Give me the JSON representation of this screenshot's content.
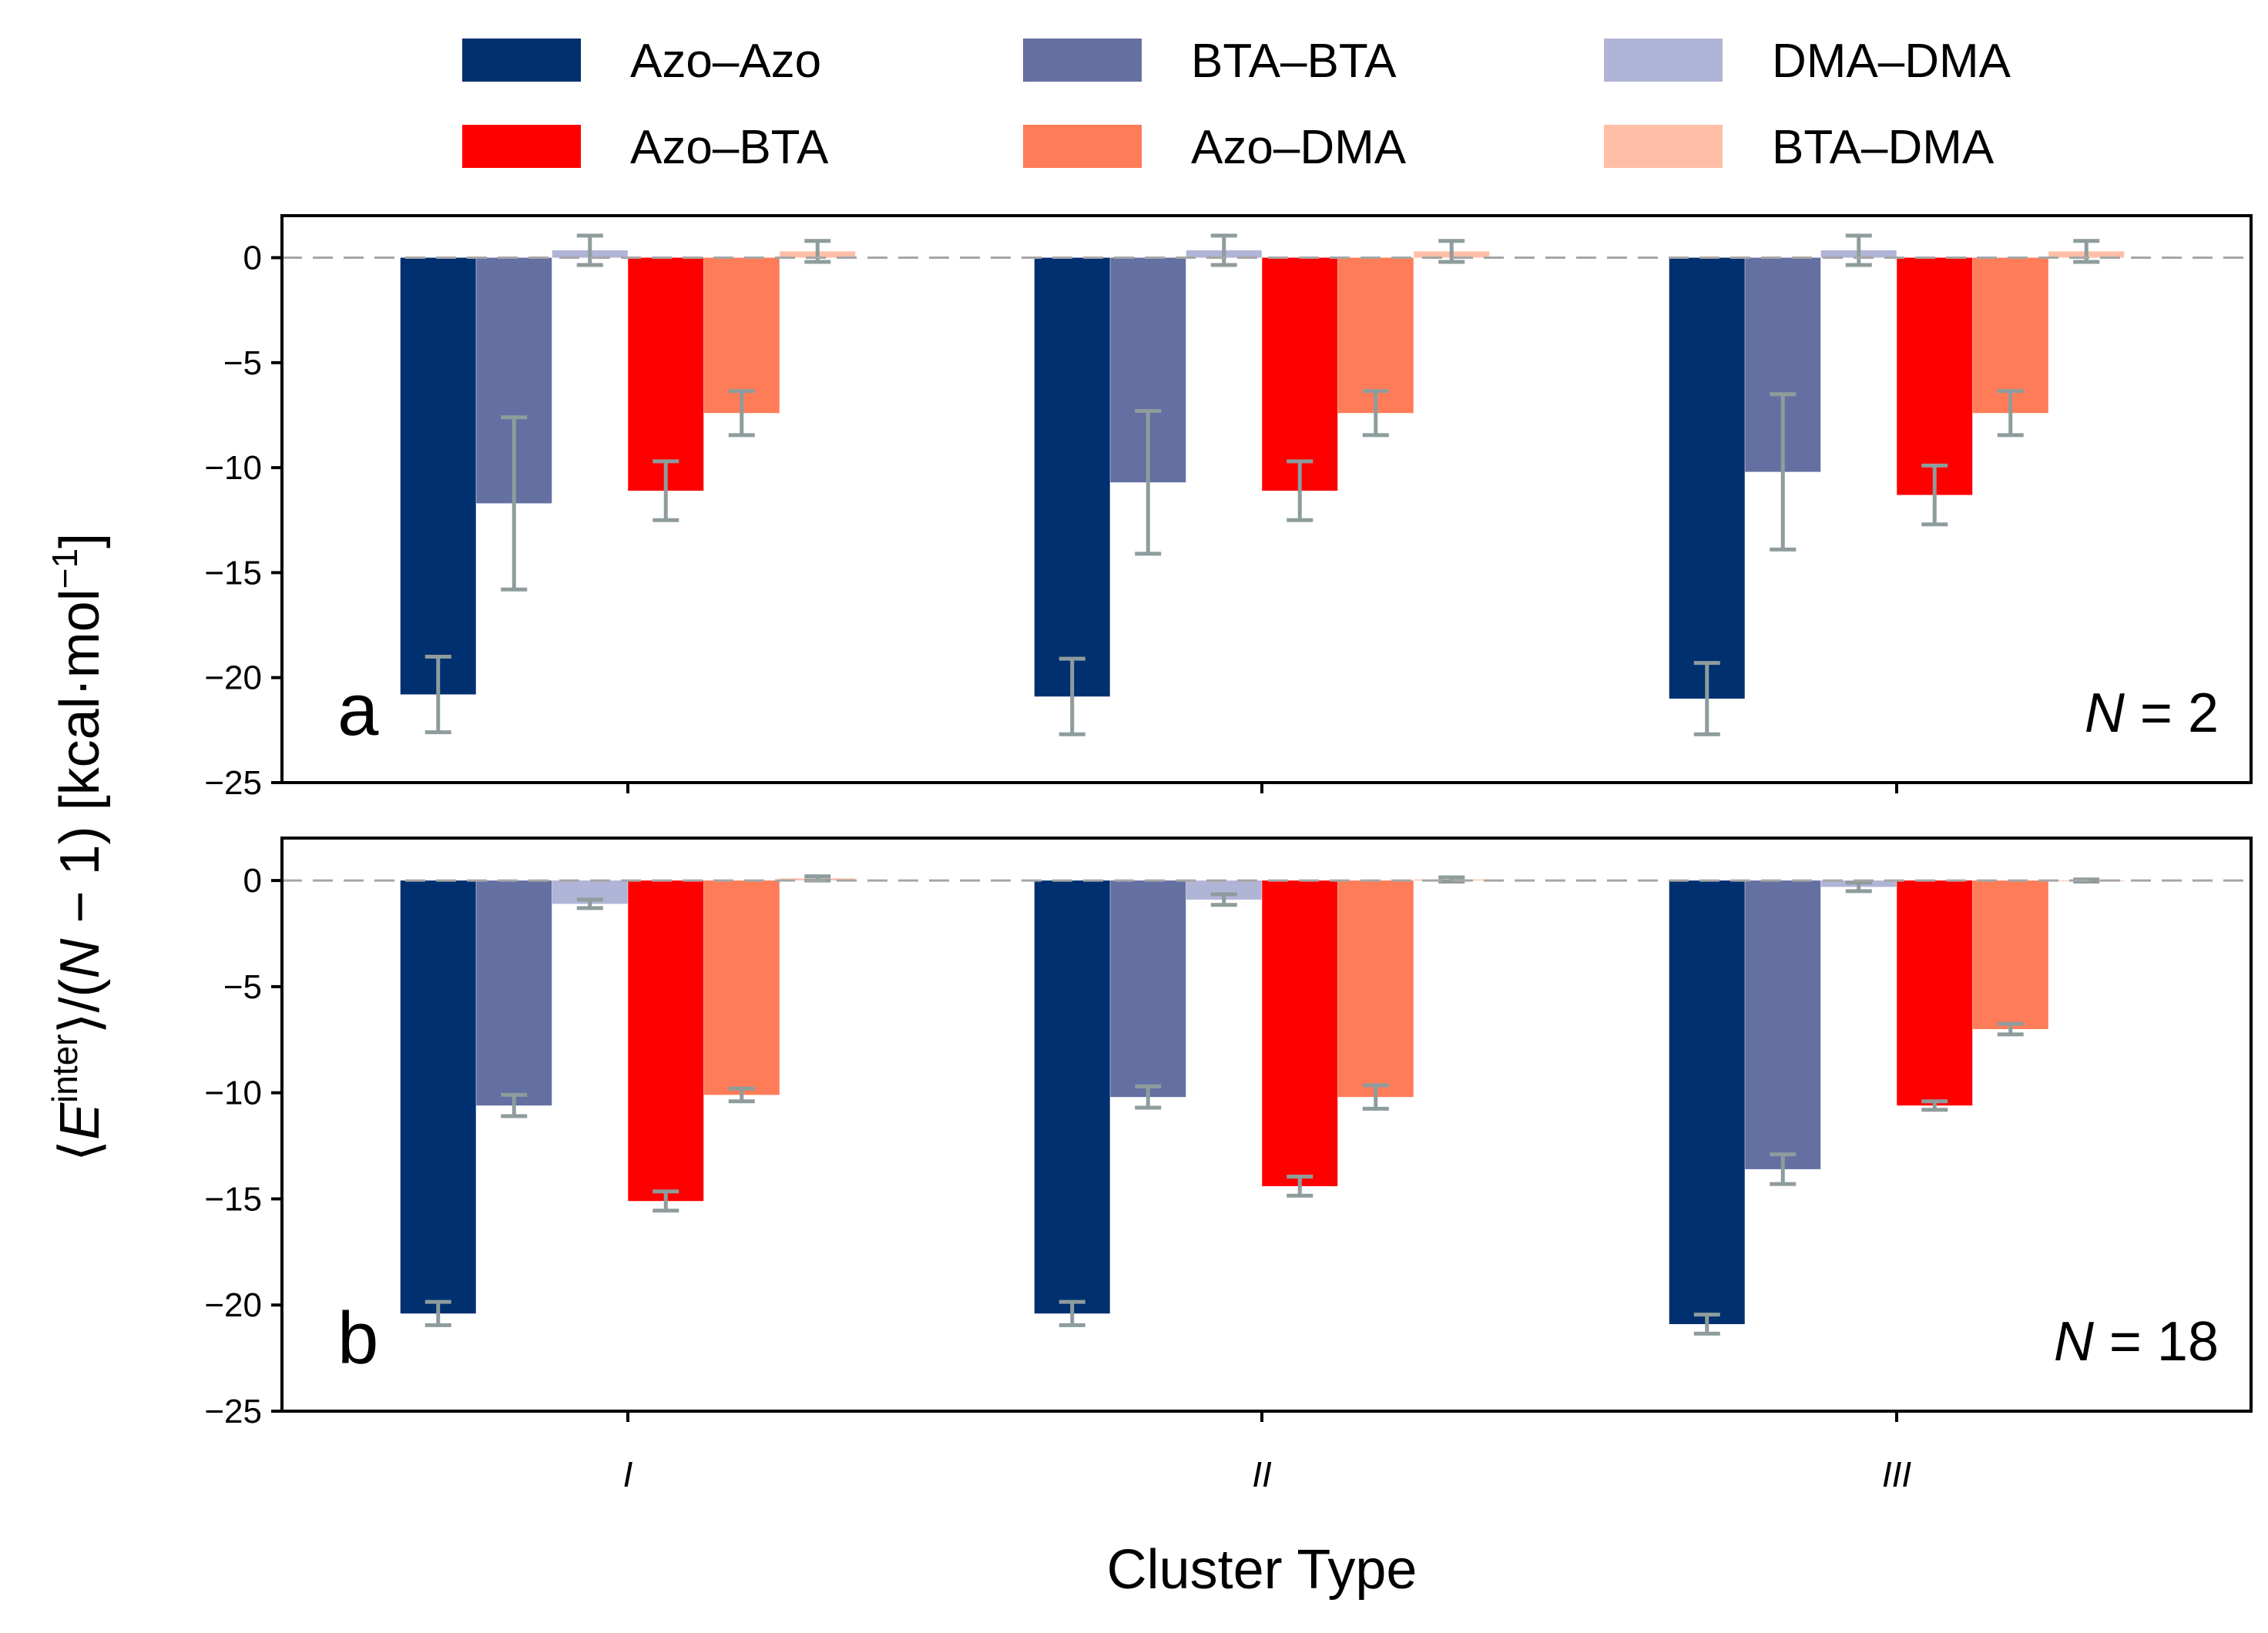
{
  "chart_data": {
    "type": "bar",
    "legend_position": "top",
    "series_names": [
      "Azo–Azo",
      "BTA–BTA",
      "DMA–DMA",
      "Azo–BTA",
      "Azo–DMA",
      "BTA–DMA"
    ],
    "series_colors": [
      "#003070",
      "#6470a2",
      "#b0b4d6",
      "#ff0000",
      "#ff7c58",
      "#ffbfa7"
    ],
    "error_bar_color": "#8e9c9c",
    "categories": [
      "I",
      "II",
      "III"
    ],
    "xlabel": "Cluster Type",
    "ylabel": "⟨Einter⟩/(N − 1)   [kcal·mol−1]",
    "ylim": [
      -25,
      2
    ],
    "yticks": [
      0,
      -5,
      -10,
      -15,
      -20,
      -25
    ],
    "ytick_labels": [
      "0",
      "−5",
      "−10",
      "−15",
      "−20",
      "−25"
    ],
    "reference_line": 0,
    "panels": [
      {
        "letter": "a",
        "n_label": "N = 2",
        "series": [
          {
            "name": "Azo–Azo",
            "values": [
              -20.8,
              -20.9,
              -21.0
            ],
            "errors": [
              1.8,
              1.8,
              1.7
            ]
          },
          {
            "name": "BTA–BTA",
            "values": [
              -11.7,
              -10.7,
              -10.2
            ],
            "errors": [
              4.1,
              3.4,
              3.7
            ]
          },
          {
            "name": "DMA–DMA",
            "values": [
              0.35,
              0.35,
              0.35
            ],
            "errors": [
              0.7,
              0.7,
              0.7
            ]
          },
          {
            "name": "Azo–BTA",
            "values": [
              -11.1,
              -11.1,
              -11.3
            ],
            "errors": [
              1.4,
              1.4,
              1.4
            ]
          },
          {
            "name": "Azo–DMA",
            "values": [
              -7.4,
              -7.4,
              -7.4
            ],
            "errors": [
              1.05,
              1.05,
              1.05
            ]
          },
          {
            "name": "BTA–DMA",
            "values": [
              0.3,
              0.3,
              0.3
            ],
            "errors": [
              0.5,
              0.5,
              0.5
            ]
          }
        ]
      },
      {
        "letter": "b",
        "n_label": "N = 18",
        "series": [
          {
            "name": "Azo–Azo",
            "values": [
              -20.4,
              -20.4,
              -20.9
            ],
            "errors": [
              0.55,
              0.55,
              0.45
            ]
          },
          {
            "name": "BTA–BTA",
            "values": [
              -10.6,
              -10.2,
              -13.6
            ],
            "errors": [
              0.5,
              0.5,
              0.7
            ]
          },
          {
            "name": "DMA–DMA",
            "values": [
              -1.1,
              -0.9,
              -0.3
            ],
            "errors": [
              0.2,
              0.25,
              0.2
            ]
          },
          {
            "name": "Azo–BTA",
            "values": [
              -15.1,
              -14.4,
              -10.6
            ],
            "errors": [
              0.45,
              0.45,
              0.2
            ]
          },
          {
            "name": "Azo–DMA",
            "values": [
              -10.1,
              -10.2,
              -7.0
            ],
            "errors": [
              0.3,
              0.55,
              0.25
            ]
          },
          {
            "name": "BTA–DMA",
            "values": [
              0.1,
              0.05,
              0.0
            ],
            "errors": [
              0.1,
              0.1,
              0.05
            ]
          }
        ]
      }
    ]
  }
}
